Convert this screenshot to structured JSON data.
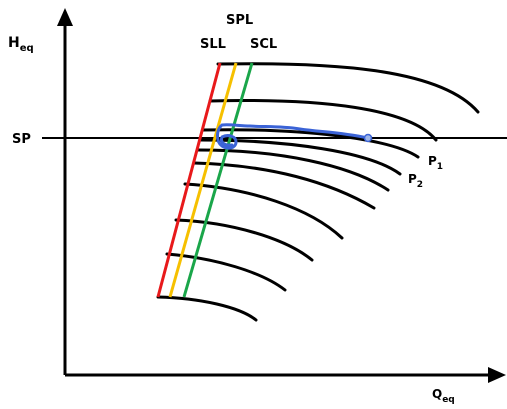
{
  "axes": {
    "y_label_main": "H",
    "y_label_sub": "eq",
    "x_label_main": "Q",
    "x_label_sub": "eq"
  },
  "setpoint": {
    "label": "SP"
  },
  "limit_lines": {
    "title": "SPL",
    "surge_limit_label": "SLL",
    "surge_control_label": "SCL",
    "colors": {
      "surge_limit_line": "#e8191b",
      "surge_protection_line": "#f6c000",
      "surge_control_line": "#1aa64a"
    }
  },
  "curves": {
    "p1_main": "P",
    "p1_sub": "1",
    "p2_main": "P",
    "p2_sub": "2"
  },
  "trajectory": {
    "color": "#3b63d6",
    "end_marker_fill": "#9eb6e8"
  }
}
